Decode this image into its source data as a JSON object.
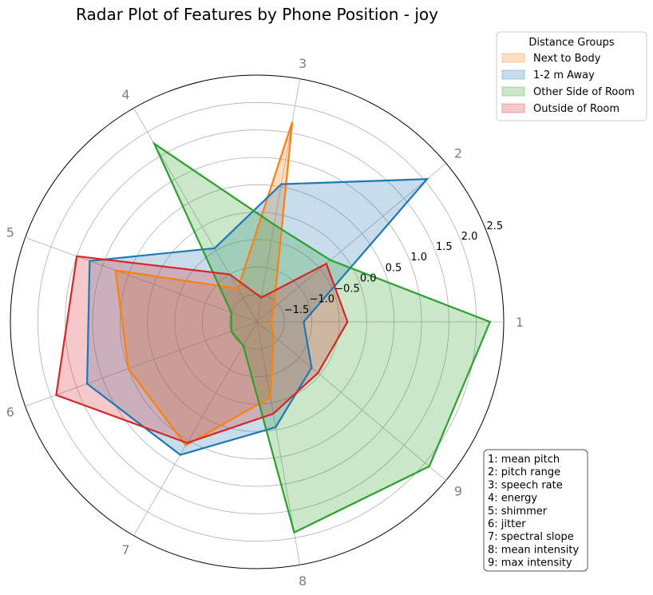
{
  "chart_data": {
    "type": "radar",
    "title": "Radar Plot of Features by Phone Position - joy",
    "categories": [
      "1",
      "2",
      "3",
      "4",
      "5",
      "6",
      "7",
      "8",
      "9"
    ],
    "r_ticks": [
      -1.5,
      -1.0,
      -0.5,
      0.0,
      0.5,
      1.0,
      1.5,
      2.0,
      2.5
    ],
    "r_tick_labels": [
      "−1.5",
      "−1.0",
      "−0.5",
      "0.0",
      "0.5",
      "1.0",
      "1.5",
      "2.0",
      "2.5"
    ],
    "rlim": [
      -2.0,
      2.5
    ],
    "grid": true,
    "legend": {
      "title": "Distance Groups",
      "position": "top-right"
    },
    "series": [
      {
        "name": "Next to Body",
        "color": "#ff7f0e",
        "values": [
          -1.75,
          -1.6,
          1.7,
          -1.3,
          0.75,
          0.5,
          0.6,
          -0.6,
          -1.6
        ]
      },
      {
        "name": "1-2 m Away",
        "color": "#1f77b4",
        "values": [
          -1.15,
          2.05,
          0.55,
          -0.45,
          1.25,
          1.3,
          0.8,
          -0.05,
          -0.7
        ]
      },
      {
        "name": "Other Side of Room",
        "color": "#2ca02c",
        "values": [
          2.25,
          -0.25,
          -0.2,
          1.75,
          -1.5,
          -1.5,
          -1.5,
          1.9,
          2.1
        ]
      },
      {
        "name": "Outside of Room",
        "color": "#d62728",
        "values": [
          -0.35,
          -0.35,
          -1.55,
          -1.0,
          1.5,
          1.9,
          0.55,
          -0.3,
          -0.55
        ]
      }
    ],
    "annotation_box": [
      "1: mean pitch",
      "2: pitch range",
      "3: speech rate",
      "4: energy",
      "5: shimmer",
      "6: jitter",
      "7: spectral slope",
      "8: mean intensity",
      "9: max intensity"
    ]
  }
}
